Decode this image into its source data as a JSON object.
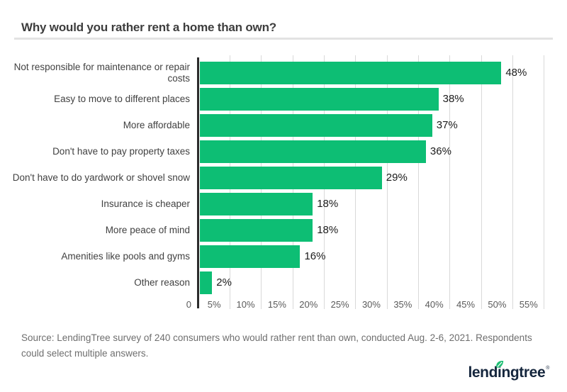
{
  "title": "Why would you rather rent a home than own?",
  "chart_data": {
    "type": "bar",
    "orientation": "horizontal",
    "title": "Why would you rather rent a home than own?",
    "categories": [
      "Not responsible for maintenance or repair costs",
      "Easy to move to different places",
      "More affordable",
      "Don't have to pay property taxes",
      "Don't have to do yardwork or shovel snow",
      "Insurance is cheaper",
      "More peace of mind",
      "Amenities like pools and gyms",
      "Other reason"
    ],
    "values": [
      48,
      38,
      37,
      36,
      29,
      18,
      18,
      16,
      2
    ],
    "value_labels": [
      "48%",
      "38%",
      "37%",
      "36%",
      "29%",
      "18%",
      "18%",
      "16%",
      "2%"
    ],
    "x_ticks": [
      "0",
      "5%",
      "10%",
      "15%",
      "20%",
      "25%",
      "30%",
      "35%",
      "40%",
      "45%",
      "50%",
      "55%"
    ],
    "xlim": [
      0,
      55
    ],
    "xlabel": "",
    "ylabel": "",
    "grid": "vertical",
    "legend": "none",
    "bar_color": "#0dbe74"
  },
  "source_note": "Source: LendingTree survey of 240 consumers who would rather rent than own, conducted Aug. 2-6, 2021. Respondents could select multiple answers.",
  "logo": {
    "part_left": "lend",
    "part_i": "i",
    "part_right": "ngtree",
    "registered_mark": "®",
    "leaf_color": "#1fbf75",
    "text_color": "#15263d"
  },
  "colors": {
    "bar_green": "#0dbe74",
    "axis_line": "#2b2b2b",
    "gridline": "#d9d9d9",
    "divider": "#e3e3e3",
    "title_text": "#3d3d3d",
    "tick_text": "#5a5a5a",
    "value_text": "#1b1b1b",
    "label_text": "#414141",
    "source_text": "#6e6e6e"
  }
}
